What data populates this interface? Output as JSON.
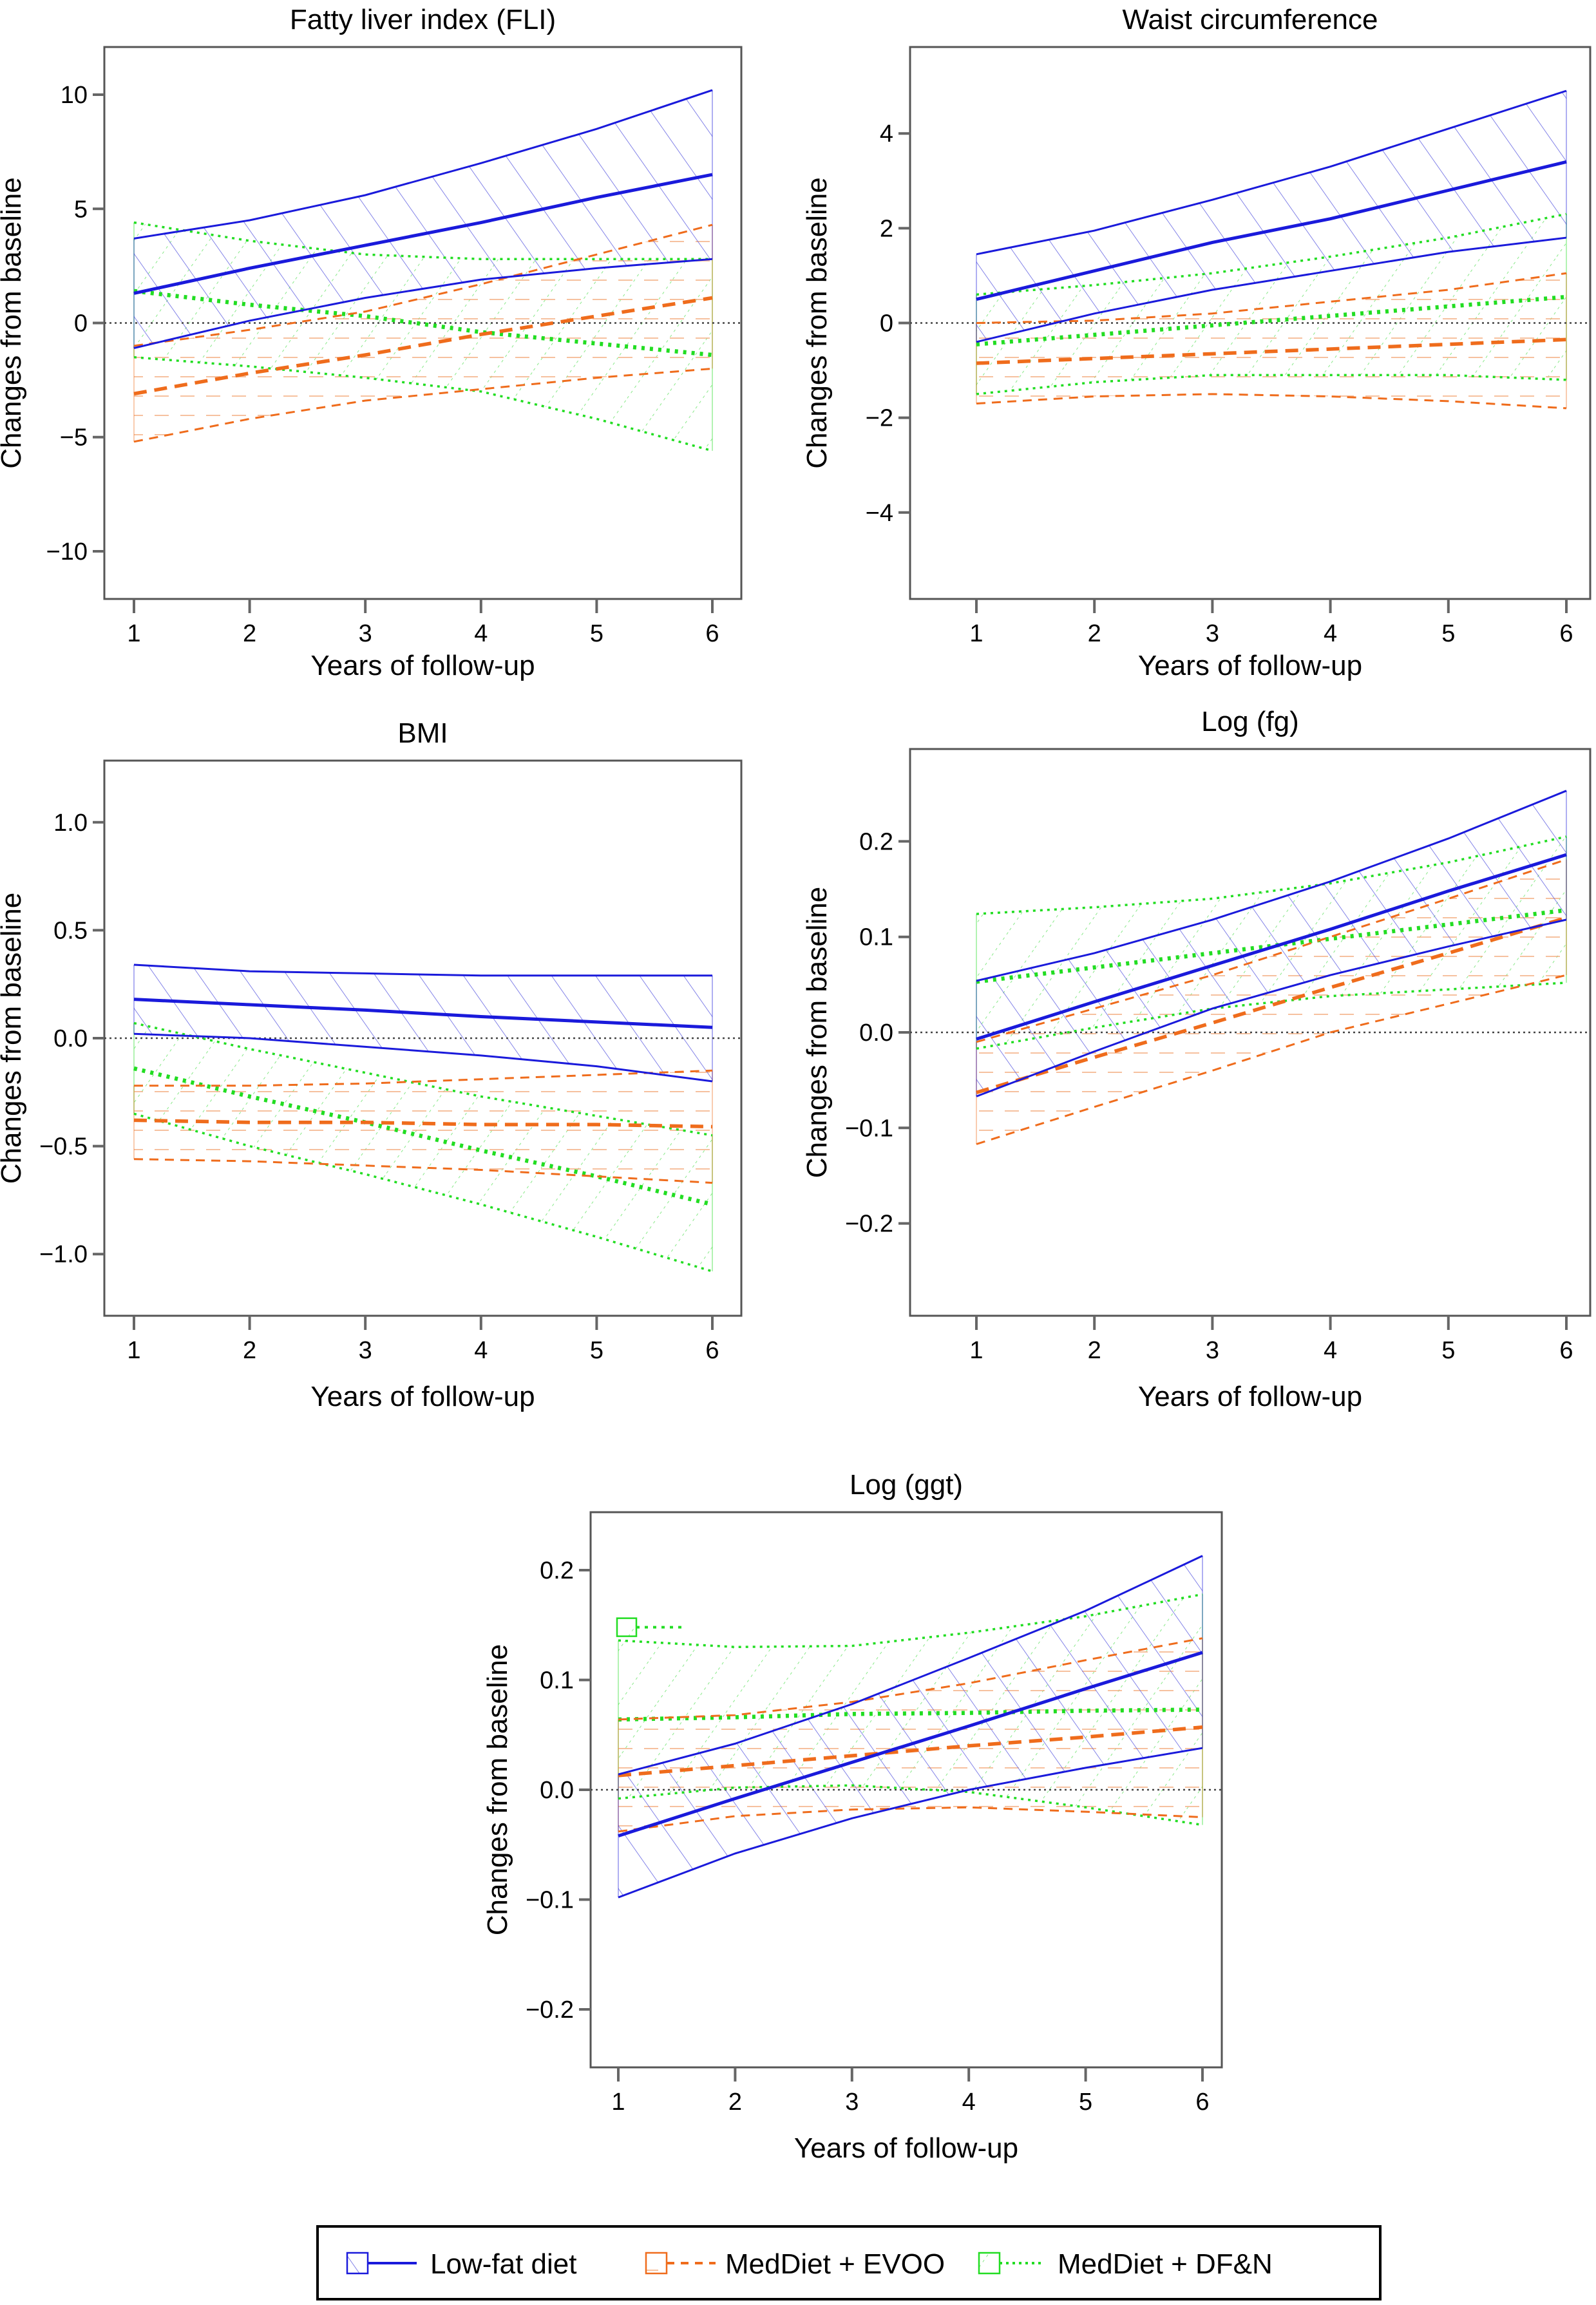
{
  "figure": {
    "legend": [
      {
        "name": "Low-fat diet",
        "color": "#1a1adb",
        "style": "solid",
        "hatch": "backslash"
      },
      {
        "name": "MedDiet + EVOO",
        "color": "#ef6c1c",
        "style": "dashed",
        "hatch": "horizontal"
      },
      {
        "name": "MedDiet + DF&N",
        "color": "#22dd22",
        "style": "dotted",
        "hatch": "slash"
      }
    ]
  },
  "chart_data": [
    {
      "type": "line",
      "title": "Fatty liver index (FLI)",
      "xlabel": "Years of follow-up",
      "ylabel": "Changes from baseline",
      "x": [
        1,
        2,
        3,
        4,
        5,
        6
      ],
      "xticks": [
        "1",
        "2",
        "3",
        "4",
        "5",
        "6"
      ],
      "ylim": [
        -11,
        11
      ],
      "yticks": [
        10,
        5,
        0,
        -5,
        -10
      ],
      "ytick_labels": [
        "10",
        "5",
        "0",
        "−5",
        "−10"
      ],
      "reference_line": 0,
      "series": [
        {
          "name": "Low-fat diet",
          "mean": [
            1.3,
            2.4,
            3.4,
            4.4,
            5.5,
            6.5
          ],
          "upper": [
            3.7,
            4.5,
            5.6,
            7.0,
            8.5,
            10.2
          ],
          "lower": [
            -1.1,
            0.1,
            1.1,
            1.9,
            2.4,
            2.8
          ]
        },
        {
          "name": "MedDiet + EVOO",
          "mean": [
            -3.1,
            -2.2,
            -1.4,
            -0.5,
            0.3,
            1.1
          ],
          "upper": [
            -1.0,
            -0.3,
            0.5,
            1.7,
            3.0,
            4.3
          ],
          "lower": [
            -5.2,
            -4.2,
            -3.4,
            -2.9,
            -2.4,
            -2.0
          ]
        },
        {
          "name": "MedDiet + DF&N",
          "mean": [
            1.4,
            0.8,
            0.3,
            -0.4,
            -0.9,
            -1.4
          ],
          "upper": [
            4.4,
            3.6,
            3.0,
            2.8,
            2.8,
            2.8
          ],
          "lower": [
            -1.5,
            -1.9,
            -2.4,
            -3.0,
            -4.2,
            -5.6
          ]
        }
      ]
    },
    {
      "type": "line",
      "title": "Waist circumference",
      "xlabel": "Years of follow-up",
      "ylabel": "Changes from baseline",
      "x": [
        1,
        2,
        3,
        4,
        5,
        6
      ],
      "xticks": [
        "1",
        "2",
        "3",
        "4",
        "5",
        "6"
      ],
      "ylim": [
        -5.3,
        5.3
      ],
      "yticks": [
        4,
        2,
        0,
        -2,
        -4
      ],
      "ytick_labels": [
        "4",
        "2",
        "0",
        "−2",
        "−4"
      ],
      "reference_line": 0,
      "series": [
        {
          "name": "Low-fat diet",
          "mean": [
            0.5,
            1.1,
            1.7,
            2.2,
            2.8,
            3.4
          ],
          "upper": [
            1.45,
            1.95,
            2.6,
            3.3,
            4.1,
            4.9
          ],
          "lower": [
            -0.4,
            0.2,
            0.7,
            1.1,
            1.5,
            1.8
          ]
        },
        {
          "name": "MedDiet + EVOO",
          "mean": [
            -0.85,
            -0.75,
            -0.65,
            -0.55,
            -0.45,
            -0.35
          ],
          "upper": [
            0.0,
            0.05,
            0.2,
            0.45,
            0.7,
            1.05
          ],
          "lower": [
            -1.7,
            -1.55,
            -1.5,
            -1.55,
            -1.65,
            -1.8
          ]
        },
        {
          "name": "MedDiet + DF&N",
          "mean": [
            -0.45,
            -0.25,
            -0.05,
            0.15,
            0.35,
            0.55
          ],
          "upper": [
            0.6,
            0.8,
            1.05,
            1.4,
            1.8,
            2.3
          ],
          "lower": [
            -1.5,
            -1.25,
            -1.1,
            -1.1,
            -1.1,
            -1.2
          ]
        }
      ]
    },
    {
      "type": "line",
      "title": "BMI",
      "xlabel": "Years of follow-up",
      "ylabel": "Changes from baseline",
      "x": [
        1,
        2,
        3,
        4,
        5,
        6
      ],
      "xticks": [
        "1",
        "2",
        "3",
        "4",
        "5",
        "6"
      ],
      "ylim": [
        -1.17,
        1.17
      ],
      "yticks": [
        1.0,
        0.5,
        0.0,
        -0.5,
        -1.0
      ],
      "ytick_labels": [
        "1.0",
        "0.5",
        "0.0",
        "−0.5",
        "−1.0"
      ],
      "reference_line": 0,
      "series": [
        {
          "name": "Low-fat diet",
          "mean": [
            0.18,
            0.155,
            0.13,
            0.1,
            0.075,
            0.05
          ],
          "upper": [
            0.34,
            0.31,
            0.3,
            0.29,
            0.29,
            0.29
          ],
          "lower": [
            0.02,
            0.0,
            -0.04,
            -0.08,
            -0.13,
            -0.2
          ]
        },
        {
          "name": "MedDiet + EVOO",
          "mean": [
            -0.38,
            -0.39,
            -0.39,
            -0.4,
            -0.4,
            -0.41
          ],
          "upper": [
            -0.22,
            -0.22,
            -0.21,
            -0.19,
            -0.17,
            -0.15
          ],
          "lower": [
            -0.56,
            -0.57,
            -0.59,
            -0.61,
            -0.64,
            -0.67
          ]
        },
        {
          "name": "MedDiet + DF&N",
          "mean": [
            -0.14,
            -0.27,
            -0.39,
            -0.52,
            -0.64,
            -0.77
          ],
          "upper": [
            0.07,
            -0.05,
            -0.16,
            -0.27,
            -0.36,
            -0.45
          ],
          "lower": [
            -0.35,
            -0.5,
            -0.63,
            -0.77,
            -0.92,
            -1.08
          ]
        }
      ]
    },
    {
      "type": "line",
      "title": "Log (fg)",
      "xlabel": "Years of follow-up",
      "ylabel": "Changes from baseline",
      "x": [
        1,
        2,
        3,
        4,
        5,
        6
      ],
      "xticks": [
        "1",
        "2",
        "3",
        "4",
        "5",
        "6"
      ],
      "ylim": [
        -0.27,
        0.27
      ],
      "yticks": [
        0.2,
        0.1,
        0.0,
        -0.1,
        -0.2
      ],
      "ytick_labels": [
        "0.2",
        "0.1",
        "0.0",
        "−0.1",
        "−0.2"
      ],
      "reference_line": 0,
      "series": [
        {
          "name": "Low-fat diet",
          "mean": [
            -0.007,
            0.032,
            0.07,
            0.108,
            0.148,
            0.186
          ],
          "upper": [
            0.054,
            0.083,
            0.118,
            0.158,
            0.203,
            0.253
          ],
          "lower": [
            -0.067,
            -0.02,
            0.025,
            0.06,
            0.09,
            0.118
          ]
        },
        {
          "name": "MedDiet + EVOO",
          "mean": [
            -0.063,
            -0.026,
            0.01,
            0.047,
            0.083,
            0.12
          ],
          "upper": [
            -0.01,
            0.025,
            0.06,
            0.1,
            0.14,
            0.181
          ],
          "lower": [
            -0.117,
            -0.078,
            -0.04,
            0.0,
            0.03,
            0.06
          ]
        },
        {
          "name": "MedDiet + DF&N",
          "mean": [
            0.053,
            0.068,
            0.083,
            0.098,
            0.113,
            0.128
          ],
          "upper": [
            0.124,
            0.131,
            0.14,
            0.156,
            0.178,
            0.205
          ],
          "lower": [
            -0.017,
            0.005,
            0.025,
            0.038,
            0.045,
            0.052
          ]
        }
      ]
    },
    {
      "type": "line",
      "title": "Log (ggt)",
      "xlabel": "Years of follow-up",
      "ylabel": "Changes from baseline",
      "x": [
        1,
        2,
        3,
        4,
        5,
        6
      ],
      "xticks": [
        "1",
        "2",
        "3",
        "4",
        "5",
        "6"
      ],
      "ylim": [
        -0.23,
        0.23
      ],
      "yticks": [
        0.2,
        0.1,
        0.0,
        -0.1,
        -0.2
      ],
      "ytick_labels": [
        "0.2",
        "0.1",
        "0.0",
        "−0.1",
        "−0.2"
      ],
      "reference_line": 0,
      "series": [
        {
          "name": "Low-fat diet",
          "mean": [
            -0.042,
            -0.008,
            0.025,
            0.058,
            0.092,
            0.125
          ],
          "upper": [
            0.014,
            0.042,
            0.078,
            0.12,
            0.163,
            0.213
          ],
          "lower": [
            -0.098,
            -0.058,
            -0.026,
            0.0,
            0.02,
            0.038
          ]
        },
        {
          "name": "MedDiet + EVOO",
          "mean": [
            0.013,
            0.022,
            0.031,
            0.04,
            0.048,
            0.057
          ],
          "upper": [
            0.064,
            0.068,
            0.08,
            0.097,
            0.118,
            0.138
          ],
          "lower": [
            -0.038,
            -0.024,
            -0.018,
            -0.016,
            -0.02,
            -0.025
          ]
        },
        {
          "name": "MedDiet + DF&N",
          "mean": [
            0.064,
            0.066,
            0.069,
            0.07,
            0.072,
            0.073
          ],
          "upper": [
            0.136,
            0.13,
            0.131,
            0.143,
            0.158,
            0.178
          ],
          "lower": [
            -0.008,
            0.002,
            0.004,
            -0.002,
            -0.016,
            -0.032
          ]
        }
      ]
    }
  ]
}
